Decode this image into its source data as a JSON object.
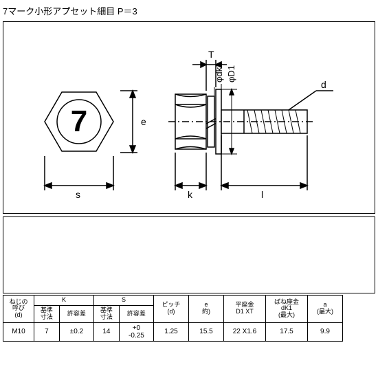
{
  "title": "7マーク小形アプセット細目 P＝3",
  "diagram": {
    "labels": {
      "T": "T",
      "phidk1": "φdk1",
      "phiD1": "φD1",
      "d": "d",
      "e": "e",
      "s": "s",
      "k": "k",
      "l": "l",
      "seven": "7"
    },
    "colors": {
      "stroke": "#000000",
      "fill": "#ffffff"
    }
  },
  "table": {
    "headers": {
      "nominal": "ねじの\n呼び\n(d)",
      "K": "K",
      "S": "S",
      "basic": "基準\n寸法",
      "tol": "許容差",
      "pitch": "ピッチ\n(d)",
      "e": "e\n約)",
      "washer": "平座金\nD1 XT",
      "spring": "ばね座金\ndK1\n(最大)",
      "a": "a\n(最大)"
    },
    "row": {
      "nominal": "M10",
      "k_basic": "7",
      "k_tol": "±0.2",
      "s_basic": "14",
      "s_tol": "+0\n-0.25",
      "pitch": "1.25",
      "e": "15.5",
      "washer": "22 X1.6",
      "spring": "17.5",
      "a": "9.9"
    }
  }
}
